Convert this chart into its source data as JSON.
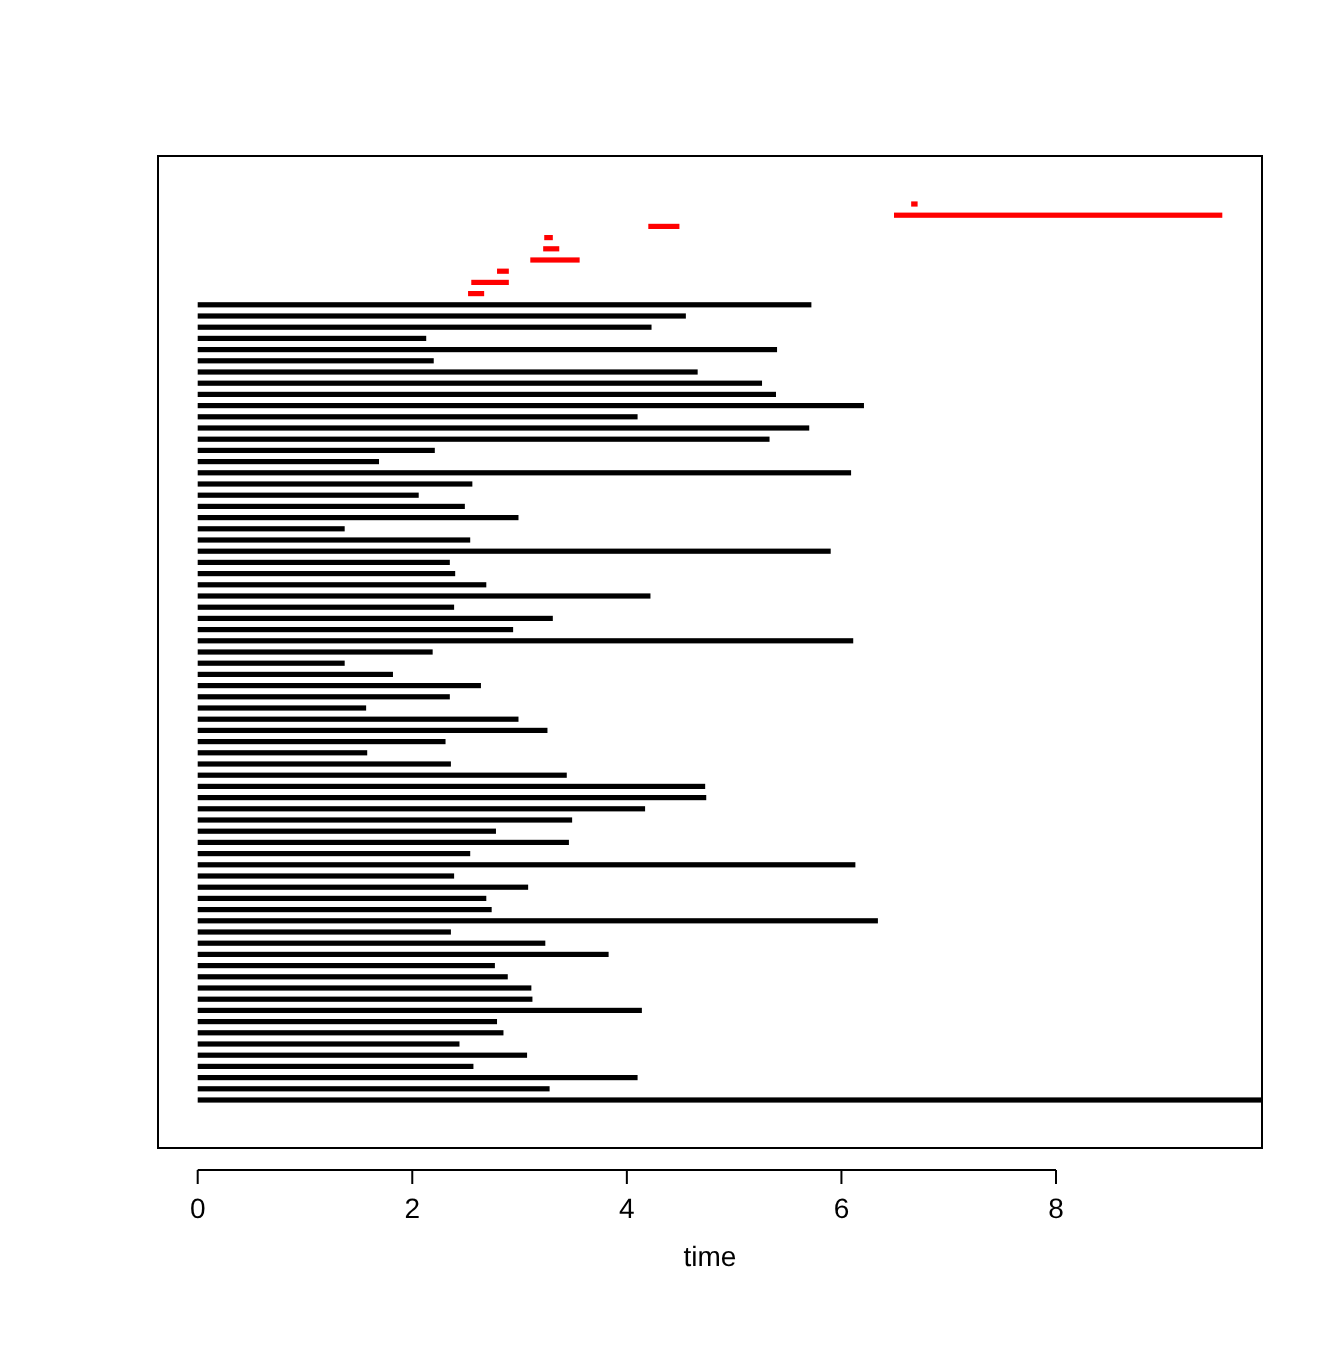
{
  "chart_data": {
    "type": "bar",
    "orientation": "horizontal",
    "xlabel": "time",
    "tick_labels": "x",
    "categories": [
      null,
      null,
      null,
      null,
      null,
      null,
      null,
      null,
      null,
      null,
      null,
      null,
      null,
      null,
      null,
      null,
      null,
      null,
      null,
      null,
      null,
      null,
      null,
      null,
      null,
      null,
      null,
      null,
      null,
      null,
      null,
      null,
      null,
      null,
      null,
      null,
      null,
      null,
      null,
      null,
      null,
      null,
      null,
      null,
      null,
      null,
      null,
      null,
      null,
      null,
      null,
      null,
      null,
      null,
      null,
      null,
      null,
      null,
      null,
      null,
      null,
      null,
      null,
      null,
      null,
      null,
      null,
      null,
      null,
      null,
      null,
      null,
      null,
      null,
      null,
      null,
      null,
      null,
      null,
      null,
      null
    ],
    "base": [
      6.65,
      6.49,
      4.2,
      3.23,
      3.22,
      3.1,
      2.79,
      2.55,
      2.52,
      0,
      0,
      0,
      0,
      0,
      0,
      0,
      0,
      0,
      0,
      0,
      0,
      0,
      0,
      0,
      0,
      0,
      0,
      0,
      0,
      0,
      0,
      0,
      0,
      0,
      0,
      0,
      0,
      0,
      0,
      0,
      0,
      0,
      0,
      0,
      0,
      0,
      0,
      0,
      0,
      0,
      0,
      0,
      0,
      0,
      0,
      0,
      0,
      0,
      0,
      0,
      0,
      0,
      0,
      0,
      0,
      0,
      0,
      0,
      0,
      0,
      0,
      0,
      0,
      0,
      0,
      0,
      0,
      0,
      0,
      0,
      0
    ],
    "values": [
      0.06,
      3.06,
      0.29,
      0.08,
      0.15,
      0.46,
      0.11,
      0.35,
      0.15,
      5.72,
      4.55,
      4.23,
      2.13,
      5.4,
      2.2,
      4.66,
      5.26,
      5.39,
      6.21,
      4.1,
      5.7,
      5.33,
      2.21,
      1.69,
      6.09,
      2.56,
      2.06,
      2.49,
      2.99,
      1.37,
      2.54,
      5.9,
      2.35,
      2.4,
      2.69,
      4.22,
      2.39,
      3.31,
      2.94,
      6.11,
      2.19,
      1.37,
      1.82,
      2.64,
      2.35,
      1.57,
      2.99,
      3.26,
      2.31,
      1.58,
      2.36,
      3.44,
      4.73,
      4.74,
      4.17,
      3.49,
      2.78,
      3.46,
      2.54,
      6.13,
      2.39,
      3.08,
      2.69,
      2.74,
      6.34,
      2.36,
      3.24,
      3.83,
      2.77,
      2.89,
      3.11,
      3.12,
      4.14,
      2.79,
      2.85,
      2.44,
      3.07,
      2.57,
      4.1,
      3.28,
      9.92
    ],
    "colors": [
      "#ff0000",
      "#ff0000",
      "#ff0000",
      "#ff0000",
      "#ff0000",
      "#ff0000",
      "#ff0000",
      "#ff0000",
      "#ff0000",
      "#000000",
      "#000000",
      "#000000",
      "#000000",
      "#000000",
      "#000000",
      "#000000",
      "#000000",
      "#000000",
      "#000000",
      "#000000",
      "#000000",
      "#000000",
      "#000000",
      "#000000",
      "#000000",
      "#000000",
      "#000000",
      "#000000",
      "#000000",
      "#000000",
      "#000000",
      "#000000",
      "#000000",
      "#000000",
      "#000000",
      "#000000",
      "#000000",
      "#000000",
      "#000000",
      "#000000",
      "#000000",
      "#000000",
      "#000000",
      "#000000",
      "#000000",
      "#000000",
      "#000000",
      "#000000",
      "#000000",
      "#000000",
      "#000000",
      "#000000",
      "#000000",
      "#000000",
      "#000000",
      "#000000",
      "#000000",
      "#000000",
      "#000000",
      "#000000",
      "#000000",
      "#000000",
      "#000000",
      "#000000",
      "#000000",
      "#000000",
      "#000000",
      "#000000",
      "#000000",
      "#000000",
      "#000000",
      "#000000",
      "#000000",
      "#000000",
      "#000000",
      "#000000",
      "#000000",
      "#000000",
      "#000000",
      "#000000",
      "#000000"
    ],
    "xlim": [
      -0.37,
      9.92
    ],
    "xticks": [
      0,
      2,
      4,
      6,
      8
    ]
  }
}
